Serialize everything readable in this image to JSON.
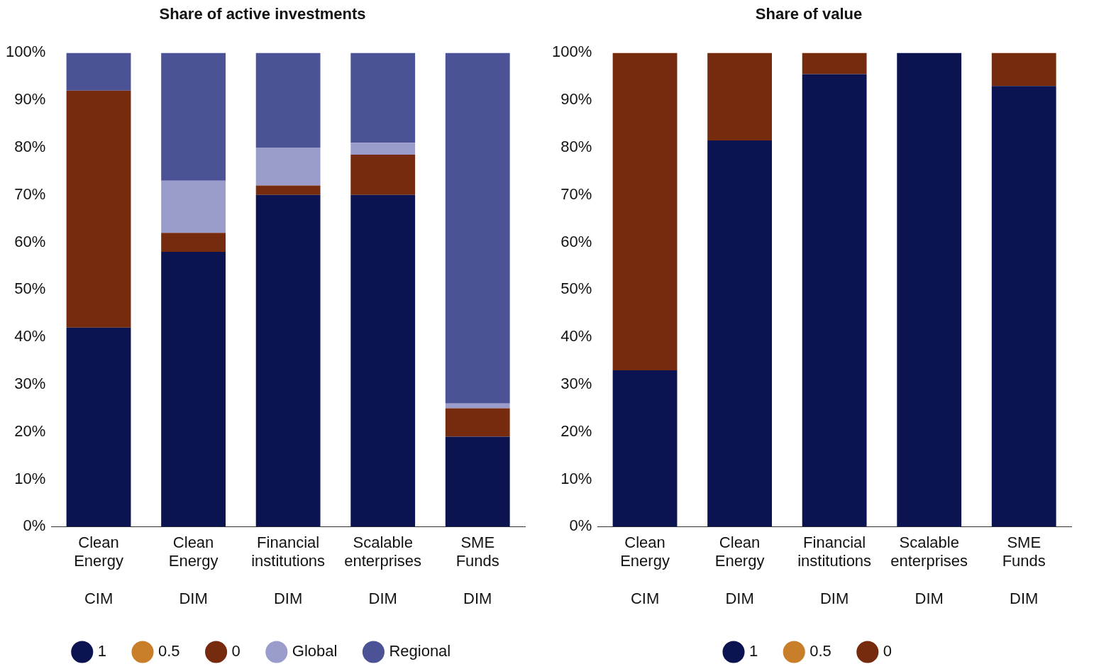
{
  "chart_data": [
    {
      "type": "bar",
      "title": "Share of active investments",
      "stacked": true,
      "categories": [
        "Clean Energy\nCIM",
        "Clean Energy\nDIM",
        "Financial institutions\nDIM",
        "Scalable enterprises\nDIM",
        "SME Funds\nDIM"
      ],
      "series": [
        {
          "name": "1",
          "color": "#0b1450",
          "values": [
            42,
            58,
            70,
            70,
            19
          ]
        },
        {
          "name": "0.5",
          "color": "#c97f2a",
          "values": [
            0,
            0,
            0,
            0,
            0
          ]
        },
        {
          "name": "0",
          "color": "#772b0e",
          "values": [
            50,
            4,
            2,
            8.5,
            6
          ]
        },
        {
          "name": "Global",
          "color": "#9a9dcc",
          "values": [
            0,
            11,
            8,
            2.5,
            1
          ]
        },
        {
          "name": "Regional",
          "color": "#4b5396",
          "values": [
            8,
            27,
            20,
            19,
            74
          ]
        }
      ],
      "ylim": [
        0,
        100
      ],
      "yticks": [
        {
          "value": 0,
          "label": "0%"
        },
        {
          "value": 10,
          "label": "10%"
        },
        {
          "value": 20,
          "label": "20%"
        },
        {
          "value": 30,
          "label": "30%"
        },
        {
          "value": 40,
          "label": "40%"
        },
        {
          "value": 50,
          "label": "50%"
        },
        {
          "value": 60,
          "label": "60%"
        },
        {
          "value": 70,
          "label": "70%"
        },
        {
          "value": 80,
          "label": "80%"
        },
        {
          "value": 90,
          "label": "90%"
        },
        {
          "value": 100,
          "label": "100%"
        }
      ],
      "grid": false,
      "legend": "bottom"
    },
    {
      "type": "bar",
      "title": "Share of value",
      "stacked": true,
      "categories": [
        "Clean Energy\nCIM",
        "Clean Energy\nDIM",
        "Financial institutions\nDIM",
        "Scalable enterprises\nDIM",
        "SME Funds\nDIM"
      ],
      "series": [
        {
          "name": "1",
          "color": "#0b1450",
          "values": [
            33,
            81.5,
            95.5,
            100,
            93
          ]
        },
        {
          "name": "0.5",
          "color": "#c97f2a",
          "values": [
            0,
            0,
            0,
            0,
            0
          ]
        },
        {
          "name": "0",
          "color": "#772b0e",
          "values": [
            67,
            18.5,
            4.5,
            0,
            7
          ]
        }
      ],
      "ylim": [
        0,
        100
      ],
      "yticks": [
        {
          "value": 0,
          "label": "0%"
        },
        {
          "value": 10,
          "label": "10%"
        },
        {
          "value": 20,
          "label": "20%"
        },
        {
          "value": 30,
          "label": "30%"
        },
        {
          "value": 40,
          "label": "40%"
        },
        {
          "value": 50,
          "label": "50%"
        },
        {
          "value": 60,
          "label": "60%"
        },
        {
          "value": 70,
          "label": "70%"
        },
        {
          "value": 80,
          "label": "80%"
        },
        {
          "value": 90,
          "label": "90%"
        },
        {
          "value": 100,
          "label": "100%"
        }
      ],
      "grid": false,
      "legend": "bottom"
    }
  ]
}
